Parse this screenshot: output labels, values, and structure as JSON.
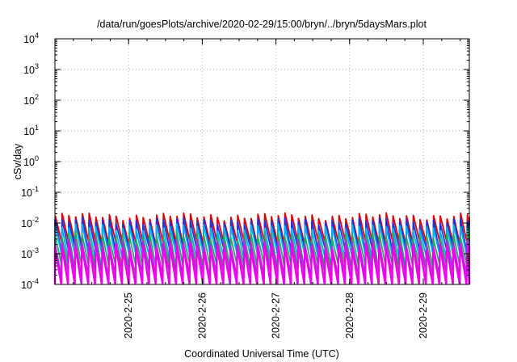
{
  "chart_data": {
    "type": "line",
    "title": "/data/run/goesPlots/archive/2020-02-29/15:00/bryn/../bryn/5daysMars.plot",
    "xlabel": "Coordinated Universal Time (UTC)",
    "ylabel": "cSv/day",
    "yscale": "log",
    "ylim": [
      0.0001,
      10000
    ],
    "y_ticks": [
      {
        "base": "10",
        "exp": "4"
      },
      {
        "base": "10",
        "exp": "3"
      },
      {
        "base": "10",
        "exp": "2"
      },
      {
        "base": "10",
        "exp": "1"
      },
      {
        "base": "10",
        "exp": "0"
      },
      {
        "base": "10",
        "exp": "-1"
      },
      {
        "base": "10",
        "exp": "-2"
      },
      {
        "base": "10",
        "exp": "-3"
      },
      {
        "base": "10",
        "exp": "-4"
      }
    ],
    "xlim": [
      "2020-02-24 00:00",
      "2020-02-29 15:00"
    ],
    "x_ticks": [
      "2020-2-25",
      "2020-2-26",
      "2020-2-27",
      "2020-2-28",
      "2020-2-29"
    ],
    "grid": true,
    "sawtooth_period_hours": 2.2,
    "series": [
      {
        "color": "#dd0000",
        "peak": 0.017,
        "trough": 0.0023
      },
      {
        "color": "#2233dd",
        "peak": 0.012,
        "trough": 0.0014
      },
      {
        "color": "#00b0f0",
        "peak": 0.0075,
        "trough": 0.0009
      },
      {
        "color": "#22aa66",
        "peak": 0.004,
        "trough": 0.0004
      },
      {
        "color": "#aa33cc",
        "peak": 0.0025,
        "trough": 0.00022
      },
      {
        "color": "#ee00ee",
        "peak": 0.0018,
        "trough": 9e-05
      }
    ]
  }
}
